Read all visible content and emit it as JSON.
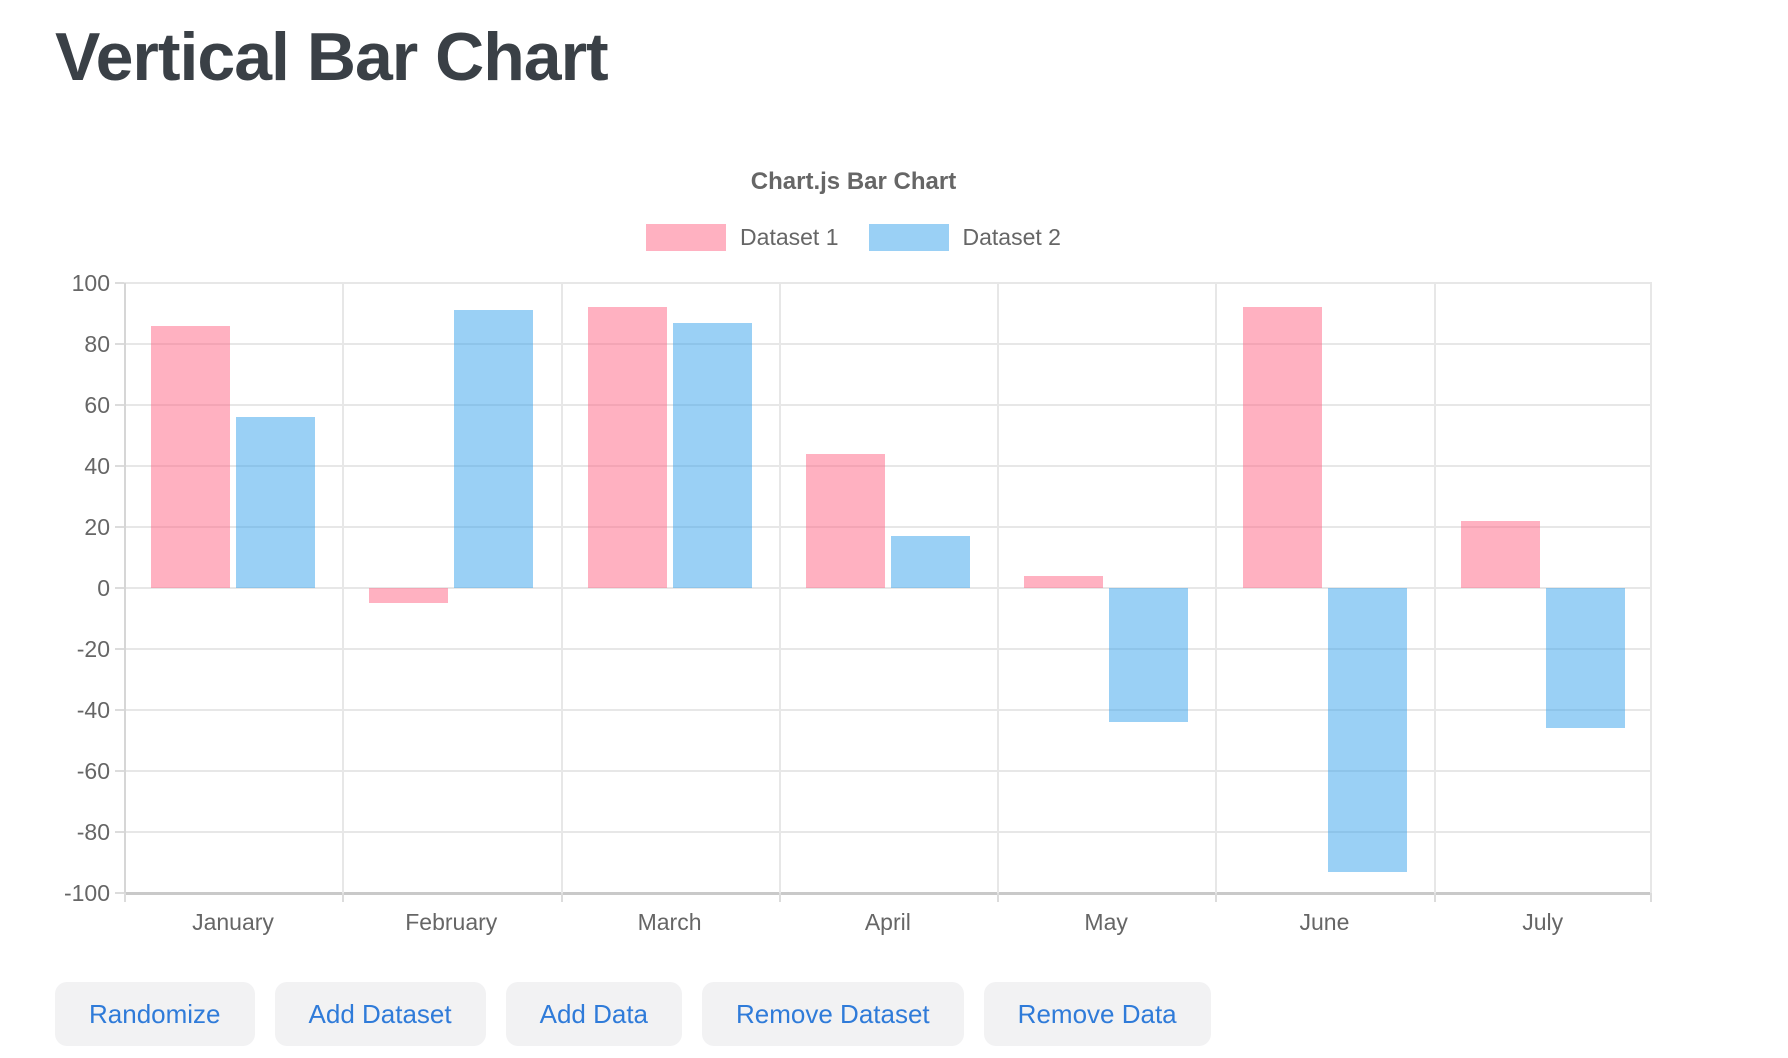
{
  "page": {
    "heading": "Vertical Bar Chart"
  },
  "chart_data": {
    "type": "bar",
    "title": "Chart.js Bar Chart",
    "categories": [
      "January",
      "February",
      "March",
      "April",
      "May",
      "June",
      "July"
    ],
    "series": [
      {
        "name": "Dataset 1",
        "color": "rgba(255,99,132,0.5)",
        "values": [
          86,
          -5,
          92,
          44,
          4,
          92,
          22
        ]
      },
      {
        "name": "Dataset 2",
        "color": "rgba(54,162,235,0.5)",
        "values": [
          56,
          91,
          87,
          17,
          -44,
          -93,
          -46
        ]
      }
    ],
    "ylim": [
      -100,
      100
    ],
    "yticks": [
      100,
      80,
      60,
      40,
      20,
      0,
      -20,
      -40,
      -60,
      -80,
      -100
    ],
    "grid": true,
    "legend_position": "top",
    "colors": {
      "grid": "#e7e7e7",
      "axis_border": "#c9c9c9",
      "tick_text": "#666666",
      "title_text": "#666666"
    }
  },
  "toolbar": {
    "buttons": [
      {
        "label": "Randomize"
      },
      {
        "label": "Add Dataset"
      },
      {
        "label": "Add Data"
      },
      {
        "label": "Remove Dataset"
      },
      {
        "label": "Remove Data"
      }
    ]
  }
}
